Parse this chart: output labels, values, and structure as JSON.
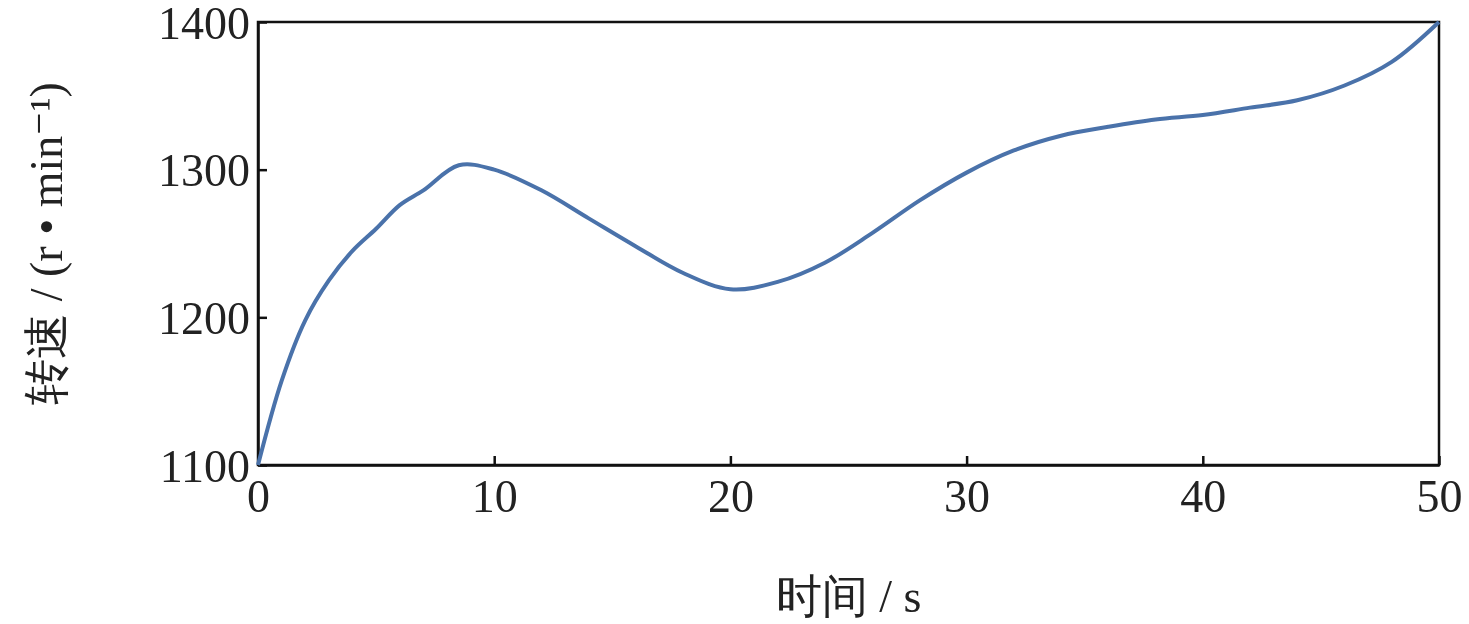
{
  "chart_data": {
    "type": "line",
    "xlabel": "时间 / s",
    "ylabel": "转速 / (r • min⁻¹)",
    "x": [
      0,
      1,
      2,
      3,
      4,
      5,
      6,
      7,
      8.5,
      10,
      12,
      14,
      16,
      18,
      20,
      22,
      24,
      26,
      28,
      30,
      32,
      34,
      36,
      38,
      40,
      42,
      44,
      46,
      48,
      50
    ],
    "series": [
      {
        "color": "#4a72aa",
        "values": [
          1100,
          1157,
          1198,
          1225,
          1245,
          1260,
          1276,
          1286,
          1303,
          1300,
          1286,
          1267,
          1248,
          1230,
          1219,
          1224,
          1237,
          1257,
          1279,
          1298,
          1313,
          1323,
          1329,
          1334,
          1337,
          1342,
          1347,
          1357,
          1373,
          1400
        ]
      }
    ],
    "xlim": [
      0,
      50
    ],
    "xticks": [
      0,
      10,
      20,
      30,
      40,
      50
    ],
    "ylim": [
      1100,
      1400
    ],
    "yticks": [
      1100,
      1200,
      1300,
      1400
    ],
    "grid": false,
    "marker": "none",
    "line_style": "solid"
  }
}
